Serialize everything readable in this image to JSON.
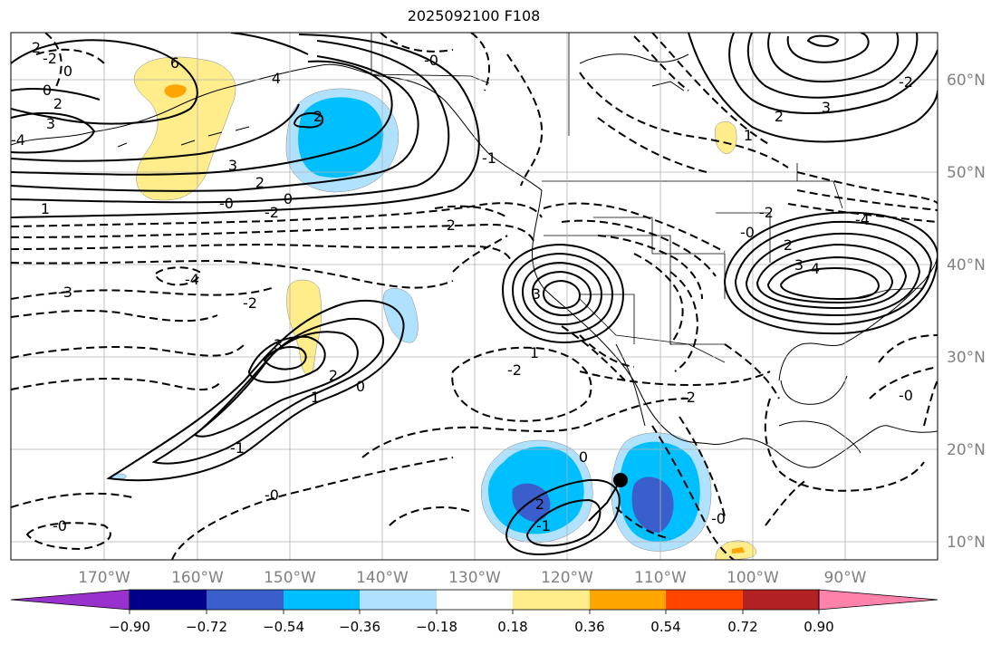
{
  "title": "2025092100 F108",
  "axes": {
    "longitude_labels": [
      "170°W",
      "160°W",
      "150°W",
      "140°W",
      "130°W",
      "120°W",
      "110°W",
      "100°W",
      "90°W"
    ],
    "latitude_labels": [
      "60°N",
      "50°N",
      "40°N",
      "30°N",
      "20°N",
      "10°N"
    ],
    "label_color": "#808080"
  },
  "colorbar": {
    "tick_labels": [
      "−0.90",
      "−0.72",
      "−0.54",
      "−0.36",
      "−0.18",
      "0.18",
      "0.36",
      "0.54",
      "0.72",
      "0.90"
    ],
    "colors": [
      "#9932cc",
      "#00008b",
      "#3a5fcd",
      "#00bfff",
      "#b0e2ff",
      "#ffffff",
      "#ffec8b",
      "#ffa500",
      "#ff4500",
      "#b22222",
      "#ff82ab"
    ]
  },
  "contour_labels": [
    {
      "text": "2"
    },
    {
      "text": "0"
    },
    {
      "text": "-2"
    },
    {
      "text": "0"
    },
    {
      "text": "2"
    },
    {
      "text": "3"
    },
    {
      "text": "-4"
    },
    {
      "text": "6"
    },
    {
      "text": "4"
    },
    {
      "text": "3"
    },
    {
      "text": "2"
    },
    {
      "text": "0"
    },
    {
      "text": "1"
    },
    {
      "text": "-2"
    },
    {
      "text": "-0"
    },
    {
      "text": "-3"
    },
    {
      "text": "-4"
    },
    {
      "text": "-2"
    },
    {
      "text": "3"
    },
    {
      "text": "2"
    },
    {
      "text": "1"
    },
    {
      "text": "0"
    },
    {
      "text": "-1"
    },
    {
      "text": "-0"
    },
    {
      "text": "-0"
    },
    {
      "text": "2"
    },
    {
      "text": "-1"
    },
    {
      "text": "-2"
    },
    {
      "text": "3"
    },
    {
      "text": "-2"
    },
    {
      "text": "-0"
    },
    {
      "text": "2"
    },
    {
      "text": "1"
    },
    {
      "text": "3"
    },
    {
      "text": "4"
    },
    {
      "text": "-2"
    },
    {
      "text": "-0"
    },
    {
      "text": "-4"
    },
    {
      "text": "2"
    },
    {
      "text": "3"
    },
    {
      "text": "1"
    },
    {
      "text": "-2"
    },
    {
      "text": "0"
    },
    {
      "text": "-1"
    },
    {
      "text": "2"
    },
    {
      "text": "-2"
    },
    {
      "text": "-0"
    },
    {
      "text": "-0"
    }
  ]
}
